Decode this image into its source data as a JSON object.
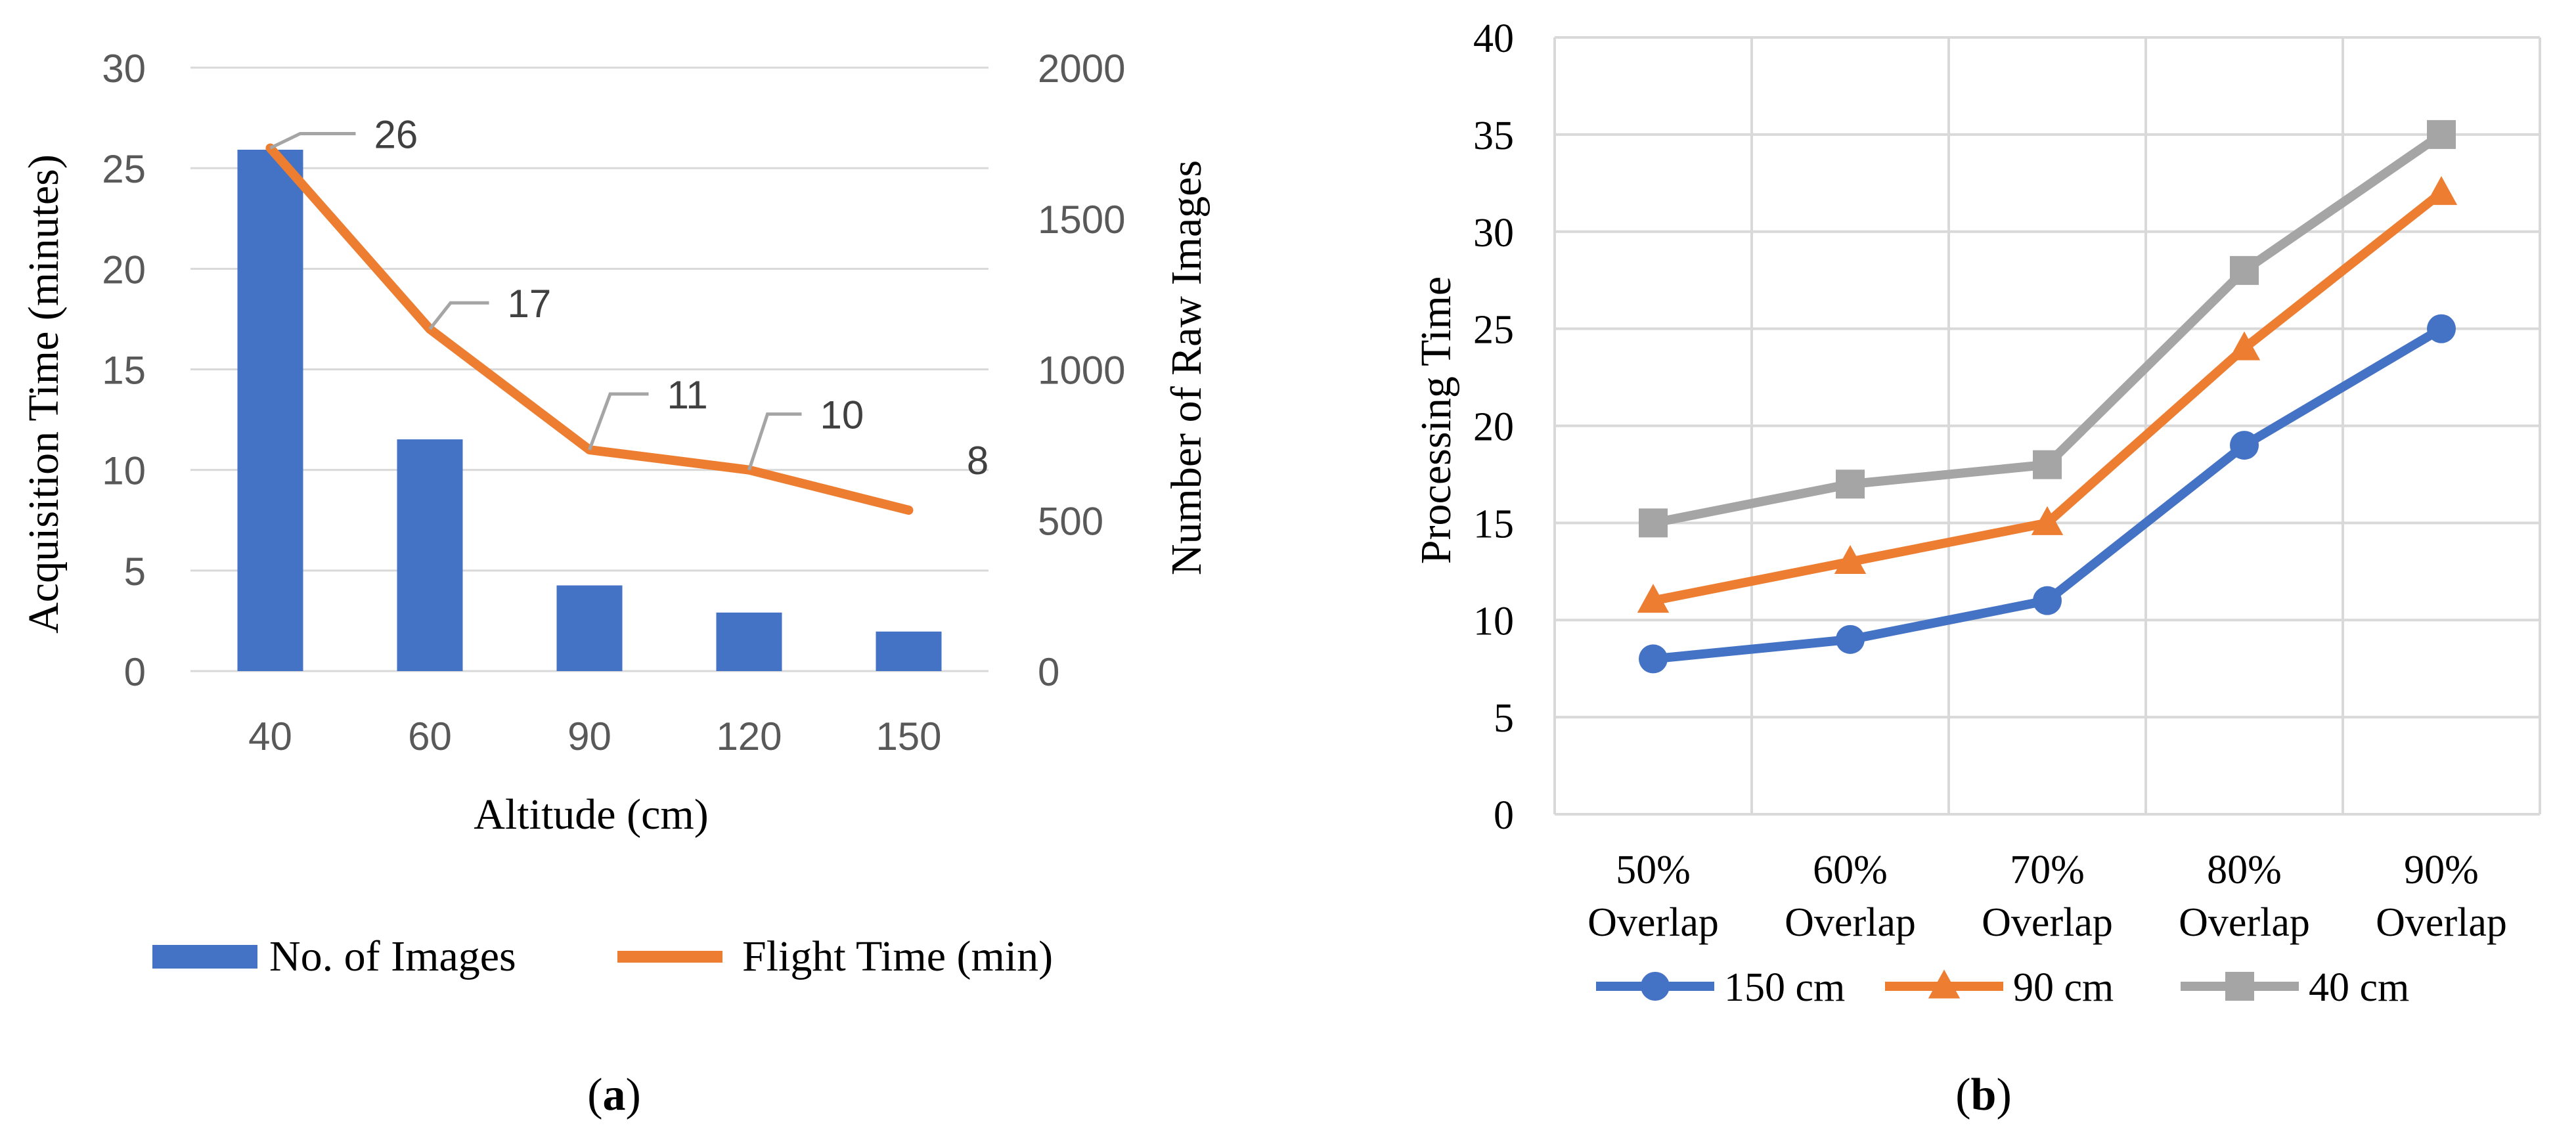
{
  "chart_data": [
    {
      "id": "a",
      "type": "bar+line",
      "panel_label": "a",
      "categories": [
        "40",
        "60",
        "90",
        "120",
        "150"
      ],
      "xlabel": "Altitude (cm)",
      "ylabel": "Acquisition Time (minutes)",
      "ylim": [
        0,
        30
      ],
      "yticks": [
        "0",
        "5",
        "10",
        "15",
        "20",
        "25",
        "30"
      ],
      "y2label": "Number of Raw Images",
      "y2lim": [
        0,
        2000
      ],
      "y2ticks": [
        "0",
        "500",
        "1000",
        "1500",
        "2000"
      ],
      "grid": true,
      "legend": "bottom",
      "series": [
        {
          "name": "No. of Images",
          "kind": "bar",
          "axis": "secondary",
          "color": "#4472c4",
          "values": [
            1728,
            768,
            284,
            194,
            131
          ]
        },
        {
          "name": "Flight Time (min)",
          "kind": "line",
          "axis": "primary",
          "color": "#ed7d31",
          "values": [
            26,
            17,
            11,
            10,
            8
          ],
          "labels": [
            "26",
            "17",
            "11",
            "10",
            "8"
          ]
        }
      ]
    },
    {
      "id": "b",
      "type": "line",
      "panel_label": "b",
      "categories": [
        [
          "50%",
          "Overlap"
        ],
        [
          "60%",
          "Overlap"
        ],
        [
          "70%",
          "Overlap"
        ],
        [
          "80%",
          "Overlap"
        ],
        [
          "90%",
          "Overlap"
        ]
      ],
      "xlabel": "",
      "ylabel": "Processing Time",
      "ylim": [
        0,
        40
      ],
      "yticks": [
        "0",
        "5",
        "10",
        "15",
        "20",
        "25",
        "30",
        "35",
        "40"
      ],
      "grid": true,
      "legend": "bottom",
      "series": [
        {
          "name": "150 cm",
          "color": "#4472c4",
          "marker": "circle",
          "values": [
            8,
            9,
            11,
            19,
            25
          ]
        },
        {
          "name": "90 cm",
          "color": "#ed7d31",
          "marker": "triangle",
          "values": [
            11,
            13,
            15,
            24,
            32
          ]
        },
        {
          "name": "40 cm",
          "color": "#a5a5a5",
          "marker": "square",
          "values": [
            15,
            17,
            18,
            28,
            35
          ]
        }
      ]
    }
  ]
}
